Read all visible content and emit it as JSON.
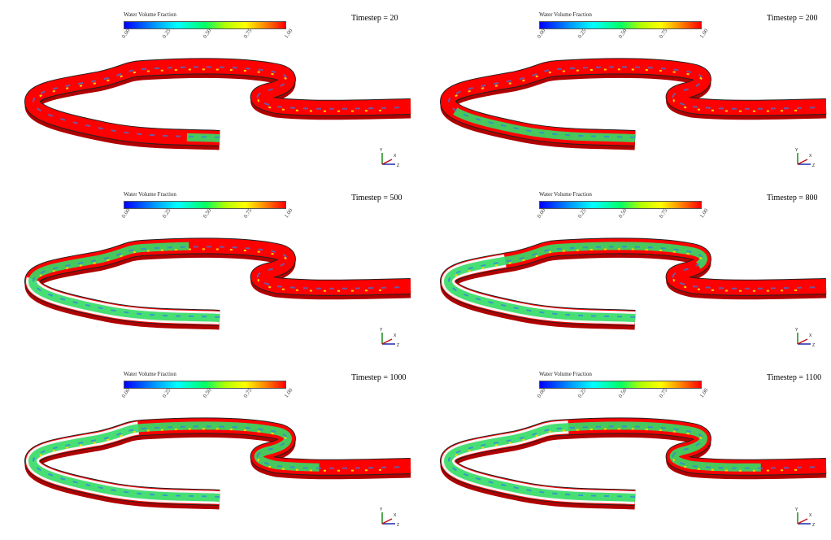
{
  "colorbar": {
    "title": "Water Volume Fraction",
    "ticks": [
      "0.00",
      "0.25",
      "0.50",
      "0.75",
      "1.00"
    ]
  },
  "axes_triad": {
    "labels": [
      "Y",
      "X",
      "Z"
    ]
  },
  "panels": [
    {
      "timestep_label": "Timestep = 20",
      "water_extent": 0.05
    },
    {
      "timestep_label": "Timestep = 200",
      "water_extent": 0.28
    },
    {
      "timestep_label": "Timestep = 500",
      "water_extent": 0.55
    },
    {
      "timestep_label": "Timestep = 800",
      "water_extent": 0.72
    },
    {
      "timestep_label": "Timestep = 1000",
      "water_extent": 0.86
    },
    {
      "timestep_label": "Timestep = 1100",
      "water_extent": 0.9
    }
  ],
  "colors": {
    "air": "#ff0000",
    "air_dark": "#b00000",
    "water_mix": "#33dd66",
    "water_blue": "#2f7fe8",
    "water_yellow": "#ffd500",
    "outline": "#222222"
  }
}
